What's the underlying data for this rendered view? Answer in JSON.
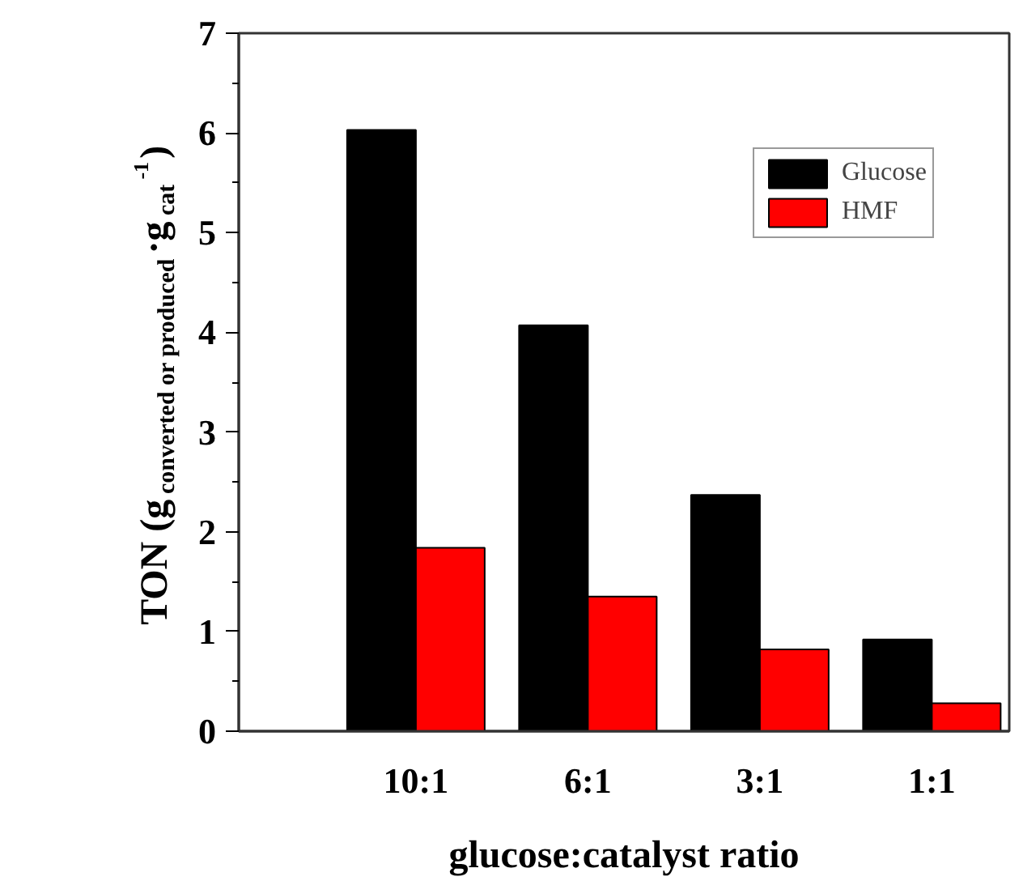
{
  "chart_data": {
    "type": "bar",
    "xlabel": "glucose:catalyst ratio",
    "ylabel": "TON (g$_{converted or produced}$·g$_{cat}$$^{-1}$)",
    "categories": [
      "10:1",
      "6:1",
      "3:1",
      "1:1"
    ],
    "series": [
      {
        "name": "Glucose",
        "color": "#000000",
        "values": [
          6.03,
          4.07,
          2.37,
          0.92
        ]
      },
      {
        "name": "HMF",
        "color": "#ff0000",
        "values": [
          1.84,
          1.35,
          0.82,
          0.28
        ]
      }
    ],
    "ylim": [
      0,
      7
    ],
    "yticks": [
      0,
      1,
      2,
      3,
      4,
      5,
      6,
      7
    ],
    "legend": "top right",
    "grid": false
  }
}
